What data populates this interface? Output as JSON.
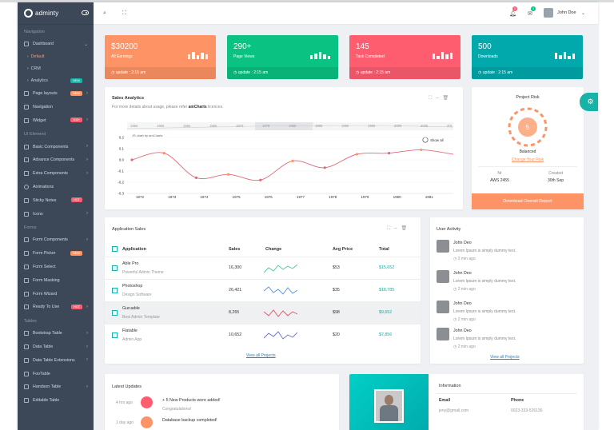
{
  "brand": {
    "name": "adminty"
  },
  "header": {
    "user": "John Doe",
    "notif_count": "5",
    "msg_count": "3"
  },
  "sidebar": {
    "section_navigation": "Navigation",
    "dashboard": "Dashboard",
    "subitems": [
      "Default",
      "CRM",
      "Analytics"
    ],
    "analytics_badge": "NEW",
    "page_layouts": "Page layouts",
    "page_layouts_badge": "NEW",
    "navigation": "Navigation",
    "widget": "Widget",
    "widget_badge": "100+",
    "section_ui": "UI Element",
    "basic_components": "Basic Components",
    "advance_components": "Advance Components",
    "extra_components": "Extra Components",
    "animations": "Animations",
    "sticky_notes": "Sticky Notes",
    "sticky_badge": "HOT",
    "icons": "Icons",
    "section_forms": "Forms",
    "form_components": "Form Components",
    "form_picker": "Form Picker",
    "form_picker_badge": "NEW",
    "form_select": "Form Select",
    "form_masking": "Form Masking",
    "form_wizard": "Form Wizard",
    "ready_to_use": "Ready To Use",
    "ready_badge": "HOT",
    "section_tables": "Tables",
    "bootstrap_table": "Bootstrap Table",
    "data_table": "Data Table",
    "data_table_ext": "Data Table Extensions",
    "footable": "FooTable",
    "handson_table": "Handson Table",
    "editable_table": "Editable Table"
  },
  "stats": [
    {
      "value": "$30200",
      "label": "All Earnings",
      "update": "update : 2:15 am",
      "color": "#fe9365"
    },
    {
      "value": "290+",
      "label": "Page Views",
      "update": "update : 2:15 am",
      "color": "#0ac282"
    },
    {
      "value": "145",
      "label": "Task Completed",
      "update": "update : 2:15 am",
      "color": "#fe5d70"
    },
    {
      "value": "500",
      "label": "Downloads",
      "update": "update : 2:15 am",
      "color": "#01a9ac"
    }
  ],
  "sales": {
    "title": "Sales Analytics",
    "subtitle_pre": "For more details about usage, please refer ",
    "subtitle_link": "amCharts",
    "subtitle_post": " licences.",
    "credit": "JS chart by amCharts",
    "show_all": "Show all"
  },
  "chart_data": {
    "type": "line",
    "x": [
      "1972",
      "1973",
      "1974",
      "1975",
      "1976",
      "1977",
      "1978",
      "1979",
      "1980",
      "1981",
      "1982"
    ],
    "values": [
      0.0,
      0.06,
      -0.16,
      -0.13,
      -0.18,
      -0.01,
      -0.07,
      0.05,
      0.06,
      0.09,
      0.05
    ],
    "ylim": [
      -0.3,
      0.2
    ],
    "yticks": [
      "0.2",
      "0.1",
      "0.0",
      "-0.1",
      "-0.2",
      "-0.3"
    ],
    "scroll_years": [
      "1950",
      "1955",
      "1960",
      "1965",
      "1970",
      "1975",
      "1980",
      "1985",
      "1990",
      "1995",
      "2000",
      "2005",
      "201"
    ],
    "line_color": "#e0697a"
  },
  "risk": {
    "title": "Project Risk",
    "score": "5",
    "status": "Balanced",
    "link": "Change Your Risk",
    "nr_label": "Nr",
    "nr_value": "AWS 2455",
    "created_label": "Created",
    "created_value": "30th Sep",
    "button": "Download Overall Report"
  },
  "app_sales": {
    "title": "Application Sales",
    "columns": [
      "Application",
      "Sales",
      "Change",
      "Avg Price",
      "Total"
    ],
    "rows": [
      {
        "name": "Able Pro",
        "desc": "Powerful Admin Theme",
        "sales": "16,300",
        "avg": "$53",
        "total": "$15,652"
      },
      {
        "name": "Photoshop",
        "desc": "Design Software",
        "sales": "26,421",
        "avg": "$35",
        "total": "$18,785"
      },
      {
        "name": "Guruable",
        "desc": "Best Admin Template",
        "sales": "8,265",
        "avg": "$98",
        "total": "$9,652"
      },
      {
        "name": "Flatable",
        "desc": "Admin App",
        "sales": "10,652",
        "avg": "$20",
        "total": "$7,856"
      }
    ],
    "view_all": "View all Projects"
  },
  "activity": {
    "title": "User Activity",
    "items": [
      {
        "name": "John Deo",
        "text": "Lorem Ipsum is simply dummy text.",
        "time": "2 min ago"
      },
      {
        "name": "John Deo",
        "text": "Lorem Ipsum is simply dummy text.",
        "time": "2 min ago"
      },
      {
        "name": "John Deo",
        "text": "Lorem Ipsum is simply dummy text.",
        "time": "2 min ago"
      },
      {
        "name": "John Deo",
        "text": "Lorem Ipsum is simply dummy text.",
        "time": "2 min ago"
      }
    ],
    "view_all": "View all Projects"
  },
  "updates": {
    "title": "Latest Updates",
    "items": [
      {
        "time": "4 hrs ago",
        "title": "+ 5 New Products were added!",
        "sub": "Congratulations!",
        "color": "#fe5d70"
      },
      {
        "time": "1 day ago",
        "title": "Database backup completed!",
        "sub": "",
        "color": "#fe9365"
      }
    ]
  },
  "profile": {
    "info_title": "Information",
    "email_label": "Email",
    "email": "jeny@gmail.com",
    "phone_label": "Phone",
    "phone": "0023-333-526136"
  }
}
